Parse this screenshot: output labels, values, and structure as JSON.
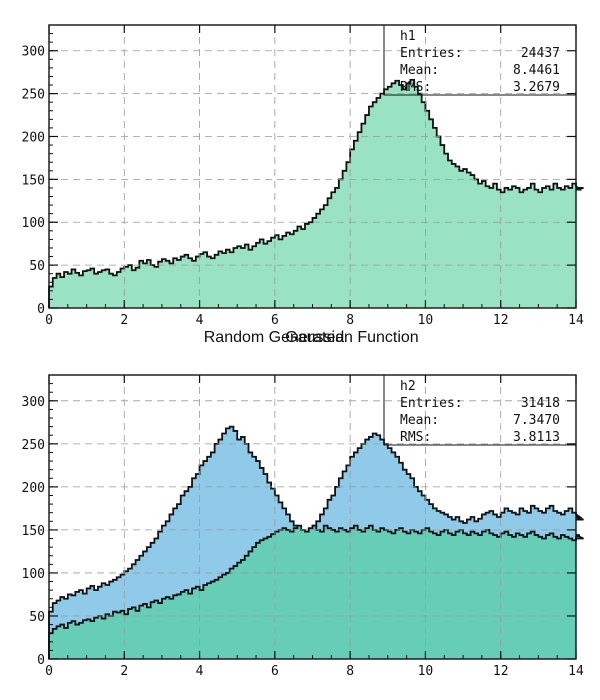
{
  "chart_data": [
    {
      "type": "histogram",
      "xlabel": "Random Generated",
      "x_range": [
        0,
        14
      ],
      "y_range": [
        0,
        330
      ],
      "x_ticks": [
        0,
        2,
        4,
        6,
        8,
        10,
        12,
        14
      ],
      "y_ticks": [
        0,
        50,
        100,
        150,
        200,
        250,
        300
      ],
      "grid": true,
      "legend": "top-right",
      "stats": {
        "name": "h1",
        "entries_label": "Entries:",
        "entries": "24437",
        "mean_label": "Mean:",
        "mean": "8.4461",
        "rms_label": "RMS:",
        "rms": "3.2679"
      },
      "series": [
        {
          "fill": "#99e2c4",
          "stroke": "#111111",
          "bin_width": 0.1,
          "values": [
            25,
            35,
            40,
            36,
            42,
            40,
            45,
            41,
            38,
            43,
            44,
            46,
            40,
            42,
            44,
            45,
            40,
            38,
            42,
            46,
            48,
            50,
            44,
            47,
            55,
            52,
            56,
            50,
            48,
            54,
            57,
            55,
            52,
            58,
            56,
            60,
            62,
            58,
            55,
            60,
            63,
            65,
            60,
            58,
            62,
            66,
            64,
            68,
            65,
            70,
            72,
            70,
            74,
            68,
            72,
            76,
            80,
            75,
            78,
            82,
            85,
            80,
            84,
            88,
            86,
            90,
            95,
            92,
            98,
            100,
            105,
            110,
            115,
            120,
            128,
            135,
            140,
            150,
            160,
            170,
            185,
            195,
            205,
            215,
            225,
            235,
            240,
            245,
            250,
            255,
            258,
            262,
            265,
            260,
            255,
            262,
            266,
            258,
            250,
            240,
            230,
            220,
            210,
            200,
            190,
            180,
            172,
            168,
            165,
            160,
            162,
            158,
            155,
            150,
            145,
            148,
            142,
            140,
            145,
            138,
            135,
            140,
            138,
            142,
            140,
            135,
            138,
            140,
            145,
            138,
            135,
            140,
            142,
            138,
            145,
            140,
            138,
            142,
            140,
            145,
            142,
            138,
            140
          ]
        }
      ]
    },
    {
      "type": "histogram",
      "xlabel": "Gaussian Function",
      "x_range": [
        0,
        14
      ],
      "y_range": [
        0,
        330
      ],
      "x_ticks": [
        0,
        2,
        4,
        6,
        8,
        10,
        12,
        14
      ],
      "y_ticks": [
        0,
        50,
        100,
        150,
        200,
        250,
        300
      ],
      "grid": true,
      "legend": "top-right",
      "stats": {
        "name": "h2",
        "entries_label": "Entries:",
        "entries": "31418",
        "mean_label": "Mean:",
        "mean": "7.3470",
        "rms_label": "RMS:",
        "rms": "3.8113"
      },
      "series": [
        {
          "fill": "#8fcbe8",
          "stroke": "#111111",
          "bin_width": 0.1,
          "values": [
            55,
            65,
            68,
            72,
            70,
            75,
            74,
            78,
            80,
            76,
            82,
            85,
            80,
            84,
            88,
            86,
            90,
            92,
            95,
            98,
            102,
            105,
            110,
            115,
            120,
            125,
            130,
            135,
            140,
            148,
            155,
            160,
            168,
            175,
            180,
            190,
            195,
            200,
            210,
            215,
            225,
            230,
            235,
            240,
            250,
            255,
            262,
            268,
            270,
            265,
            255,
            258,
            250,
            240,
            235,
            230,
            222,
            215,
            205,
            198,
            190,
            182,
            175,
            168,
            160,
            155,
            150,
            148,
            145,
            150,
            155,
            160,
            168,
            175,
            185,
            190,
            200,
            210,
            218,
            225,
            235,
            240,
            245,
            250,
            255,
            258,
            262,
            260,
            255,
            250,
            245,
            240,
            235,
            228,
            220,
            215,
            210,
            200,
            195,
            190,
            185,
            180,
            175,
            172,
            170,
            168,
            165,
            162,
            165,
            160,
            158,
            162,
            165,
            160,
            163,
            168,
            170,
            172,
            168,
            165,
            170,
            175,
            172,
            170,
            168,
            175,
            172,
            170,
            178,
            175,
            172,
            170,
            175,
            178,
            172,
            170,
            168,
            172,
            175,
            170,
            168,
            165,
            162
          ]
        },
        {
          "fill": "#66cdb7",
          "stroke": "#111111",
          "bin_width": 0.1,
          "values": [
            30,
            35,
            38,
            40,
            36,
            42,
            44,
            40,
            42,
            45,
            46,
            44,
            48,
            50,
            47,
            52,
            50,
            55,
            54,
            56,
            52,
            58,
            60,
            56,
            62,
            64,
            60,
            66,
            68,
            65,
            70,
            72,
            70,
            74,
            75,
            78,
            80,
            76,
            82,
            84,
            80,
            86,
            88,
            90,
            92,
            95,
            98,
            100,
            105,
            108,
            112,
            115,
            120,
            125,
            130,
            135,
            138,
            140,
            142,
            145,
            148,
            150,
            152,
            150,
            148,
            152,
            155,
            150,
            148,
            152,
            155,
            150,
            148,
            155,
            152,
            150,
            148,
            152,
            150,
            148,
            152,
            155,
            150,
            148,
            152,
            155,
            150,
            148,
            152,
            150,
            148,
            146,
            150,
            152,
            148,
            146,
            150,
            148,
            146,
            150,
            152,
            148,
            146,
            144,
            148,
            150,
            146,
            144,
            148,
            150,
            146,
            144,
            148,
            146,
            144,
            148,
            150,
            146,
            144,
            142,
            146,
            148,
            144,
            142,
            146,
            144,
            142,
            146,
            148,
            144,
            142,
            140,
            144,
            146,
            142,
            140,
            144,
            142,
            140,
            138,
            142,
            144,
            140
          ]
        }
      ]
    }
  ]
}
